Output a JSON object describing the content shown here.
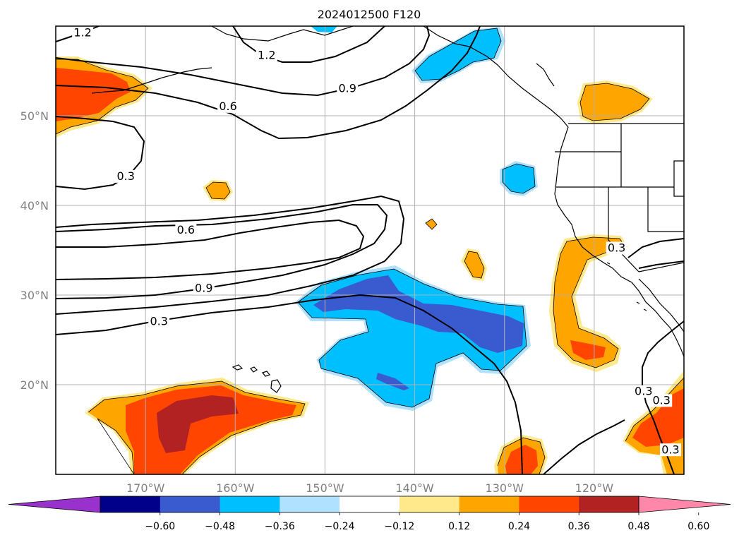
{
  "title": "2024012500 F120",
  "map": {
    "projection": "plate-carree",
    "lon_range": [
      -180,
      -110
    ],
    "lat_range": [
      10,
      60
    ],
    "gridlines": true,
    "lat_ticks": [
      {
        "value": 50,
        "label": "50°N"
      },
      {
        "value": 40,
        "label": "40°N"
      },
      {
        "value": 30,
        "label": "30°N"
      },
      {
        "value": 20,
        "label": "20°N"
      }
    ],
    "lon_ticks": [
      {
        "value": -170,
        "label": "170°W"
      },
      {
        "value": -160,
        "label": "160°W"
      },
      {
        "value": -150,
        "label": "150°W"
      },
      {
        "value": -140,
        "label": "140°W"
      },
      {
        "value": -130,
        "label": "130°W"
      },
      {
        "value": -120,
        "label": "120°W"
      }
    ]
  },
  "contour_labels": [
    {
      "text": "1.2",
      "lon": -177,
      "lat": 59
    },
    {
      "text": "1.2",
      "lon": -156.5,
      "lat": 56.5
    },
    {
      "text": "0.9",
      "lon": -147.5,
      "lat": 52.8
    },
    {
      "text": "0.6",
      "lon": -160.8,
      "lat": 50.8
    },
    {
      "text": "0.3",
      "lon": -172.2,
      "lat": 43
    },
    {
      "text": "0.6",
      "lon": -165.5,
      "lat": 37
    },
    {
      "text": "0.9",
      "lon": -163.5,
      "lat": 30.5
    },
    {
      "text": "0.3",
      "lon": -168.5,
      "lat": 26.8
    },
    {
      "text": "0.3",
      "lon": -117.5,
      "lat": 35
    },
    {
      "text": "0.3",
      "lon": -114.5,
      "lat": 19
    },
    {
      "text": "0.3",
      "lon": -112.5,
      "lat": 18
    },
    {
      "text": "0.3",
      "lon": -111.5,
      "lat": 12.5
    }
  ],
  "colorbar": {
    "colors": [
      "#9932cc",
      "#00008b",
      "#3a5bcf",
      "#00bfff",
      "#b0e2ff",
      "#ffffff",
      "#ffe98a",
      "#ffa500",
      "#ff4500",
      "#b22222",
      "#ff88aa"
    ],
    "ticks": [
      "−0.60",
      "−0.48",
      "−0.36",
      "−0.24",
      "−0.12",
      "0.12",
      "0.24",
      "0.36",
      "0.48",
      "0.60"
    ]
  },
  "colors": {
    "contour_line": "#000000",
    "coast_line": "#000000",
    "grid_line": "#b0b0b0",
    "tick_label": "#808080"
  }
}
